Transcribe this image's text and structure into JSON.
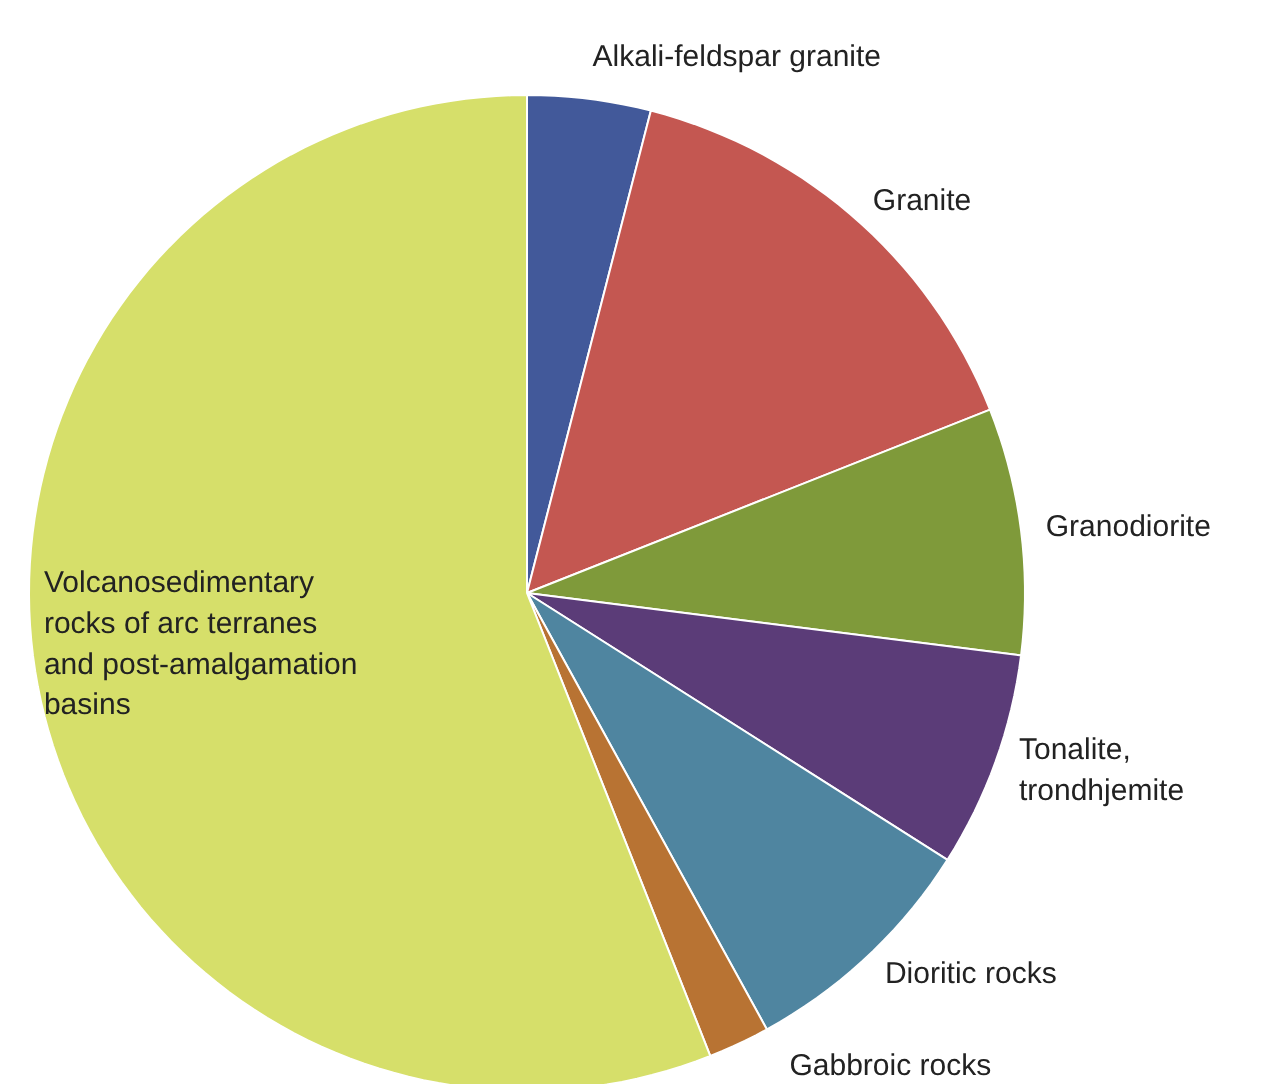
{
  "chart_data": {
    "type": "pie",
    "categories": [
      "Alkali-feldspar granite",
      "Granite",
      "Granodiorite",
      "Tonalite,\ntrondhjemite",
      "Dioritic rocks",
      "Gabbroic rocks",
      "Volcanosedimentary\nrocks of arc terranes\nand post-amalgamation\nbasins"
    ],
    "values": [
      4,
      15,
      8,
      7,
      8,
      2,
      56
    ],
    "colors": [
      "#42599a",
      "#c45751",
      "#7f9a3a",
      "#5b3c78",
      "#4f85a0",
      "#b87333",
      "#d6df6a"
    ]
  }
}
